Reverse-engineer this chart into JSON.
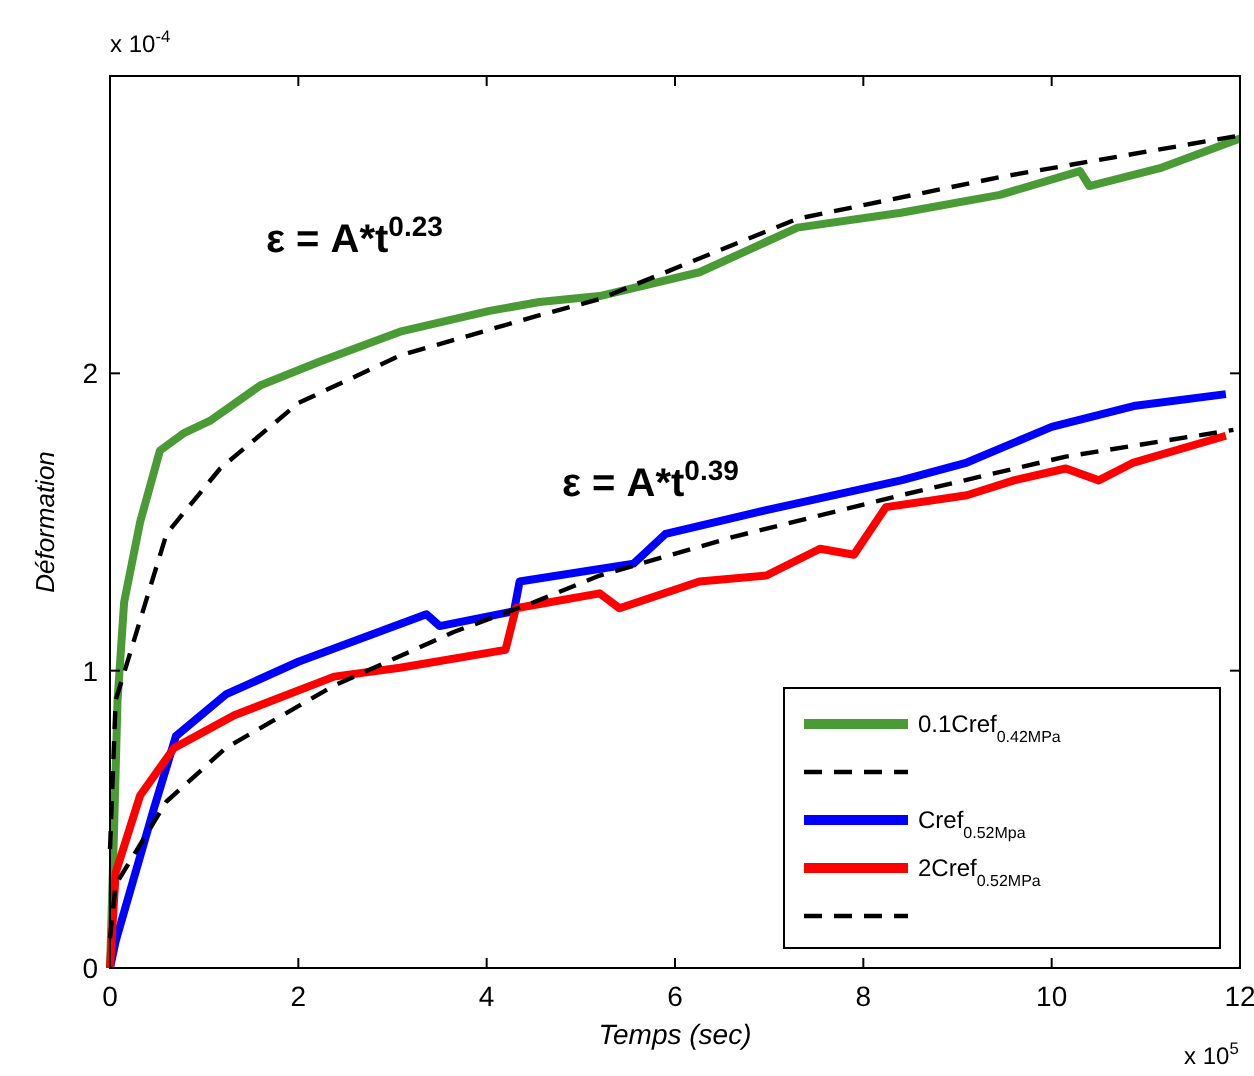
{
  "chart_data": {
    "type": "line",
    "xlabel": "Temps (sec)",
    "ylabel": "Déformation",
    "annotations": [
      "ε = A*t$^{0.23}$",
      "ε = A*t$^{0.39}$",
      "x 10$^{-4}$",
      "x 10$^{5}$"
    ],
    "xlim": [
      0,
      12
    ],
    "xticks": [
      0,
      2,
      4,
      6,
      8,
      10,
      12
    ],
    "ylim": [
      0,
      3
    ],
    "yticks": [
      0,
      1,
      2
    ],
    "grid": false,
    "legend": "bottom right",
    "series": [
      {
        "name": "0.1Cref$_{0.42MPa}$",
        "color": "#4a9a36",
        "line_style": "solid",
        "x": [
          0,
          0.04,
          0.08,
          0.15,
          0.32,
          0.53,
          0.79,
          1.06,
          1.6,
          2.23,
          3.08,
          4.03,
          4.56,
          5.2,
          6.26,
          7.3,
          8.4,
          9.45,
          10.3,
          10.4,
          11.15,
          12
        ],
        "values": [
          0,
          0.43,
          0.9,
          1.23,
          1.5,
          1.74,
          1.8,
          1.84,
          1.96,
          2.04,
          2.14,
          2.21,
          2.24,
          2.26,
          2.34,
          2.49,
          2.54,
          2.6,
          2.68,
          2.63,
          2.69,
          2.79
        ]
      },
      {
        "color": "#000000",
        "line_style": "dashed",
        "x": [
          0,
          0.06,
          0.6,
          1.17,
          2.0,
          3.08,
          4.5,
          5.2,
          7.3,
          9.45,
          12
        ],
        "values": [
          0.4,
          0.9,
          1.46,
          1.68,
          1.9,
          2.06,
          2.19,
          2.25,
          2.52,
          2.66,
          2.8
        ]
      },
      {
        "name": "Cref$_{0.52Mpa}$",
        "color": "#0000ff",
        "line_style": "solid",
        "x": [
          0,
          0.06,
          0.47,
          0.7,
          1.23,
          2.0,
          3.36,
          3.5,
          4.29,
          4.35,
          5.56,
          5.9,
          6.97,
          8.4,
          9.1,
          10.0,
          10.87,
          11.85
        ],
        "values": [
          0,
          0.09,
          0.54,
          0.78,
          0.92,
          1.03,
          1.19,
          1.15,
          1.2,
          1.3,
          1.36,
          1.46,
          1.54,
          1.64,
          1.7,
          1.82,
          1.89,
          1.93
        ]
      },
      {
        "name": "2Cref$_{0.52MPa}$",
        "color": "#ff0000",
        "line_style": "solid",
        "x": [
          0,
          0.06,
          0.32,
          0.68,
          1.32,
          2.38,
          3.08,
          4.2,
          4.31,
          5.2,
          5.41,
          6.26,
          6.97,
          7.54,
          7.9,
          8.24,
          9.1,
          9.6,
          10.15,
          10.5,
          10.87,
          11.85
        ],
        "values": [
          0,
          0.32,
          0.58,
          0.74,
          0.85,
          0.98,
          1.01,
          1.07,
          1.21,
          1.26,
          1.21,
          1.3,
          1.32,
          1.41,
          1.39,
          1.55,
          1.59,
          1.64,
          1.68,
          1.64,
          1.7,
          1.79
        ]
      },
      {
        "color": "#000000",
        "line_style": "dashed",
        "x": [
          0,
          0.06,
          0.6,
          1.23,
          2.38,
          3.65,
          4.5,
          5.2,
          6.62,
          8.4,
          10.15,
          11.93
        ],
        "values": [
          0.1,
          0.28,
          0.56,
          0.74,
          0.95,
          1.13,
          1.23,
          1.32,
          1.45,
          1.59,
          1.72,
          1.81
        ]
      }
    ]
  }
}
